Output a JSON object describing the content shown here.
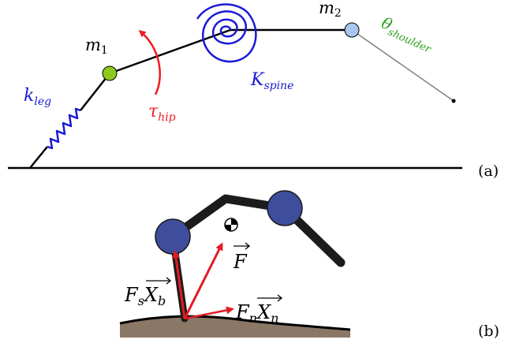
{
  "panel_a": {
    "panel_label": "(a)",
    "mass1": {
      "symbol": "m",
      "sub": "1"
    },
    "mass2": {
      "symbol": "m",
      "sub": "2"
    },
    "leg_spring": {
      "symbol": "k",
      "sub": "leg"
    },
    "hip_torque": {
      "symbol": "τ",
      "sub": "hip"
    },
    "spine_spring": {
      "symbol": "K",
      "sub": "spine"
    },
    "shoulder_angle": {
      "symbol": "θ",
      "sub": "shoulder"
    },
    "colors": {
      "structure": "#000000",
      "leg_spring": "#1a1ad6",
      "hip_torque": "#ee1c24",
      "spine_spring": "#1a1ad6",
      "shoulder_angle": "#2aa21a",
      "mass1_fill": "#8cc81e",
      "mass2_fill": "#a9c6f0",
      "shoulder_link": "#7f7f7f"
    }
  },
  "panel_b": {
    "panel_label": "(b)",
    "force_f": {
      "symbol": "F"
    },
    "force_s": {
      "coef": "F",
      "coef_sub": "s",
      "vec": "X",
      "vec_sub": "b"
    },
    "force_n": {
      "coef": "F",
      "coef_sub": "n",
      "vec": "X",
      "vec_sub": "n"
    },
    "colors": {
      "body": "#1c1c1c",
      "joint_fill": "#3e4e9c",
      "arrow": "#e31b23",
      "ground": "#8b7765"
    }
  }
}
